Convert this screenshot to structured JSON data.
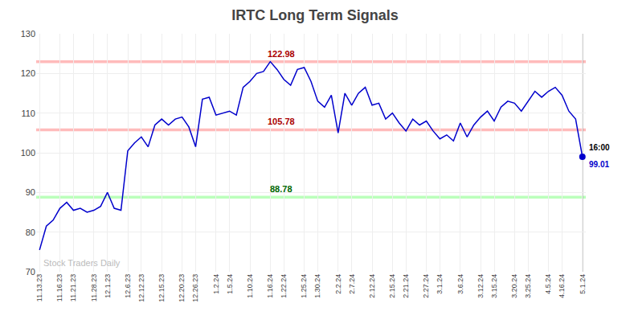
{
  "chart_data": {
    "type": "line",
    "title": "IRTC Long Term Signals",
    "categories": [
      "11.13.23",
      null,
      null,
      "11.16.23",
      null,
      "11.21.23",
      null,
      null,
      "11.28.23",
      null,
      "12.1.23",
      null,
      null,
      "12.6.23",
      null,
      "12.12.23",
      null,
      null,
      "12.15.23",
      null,
      null,
      "12.20.23",
      null,
      "12.26.23",
      null,
      null,
      "1.2.24",
      null,
      "1.5.24",
      null,
      null,
      "1.10.24",
      null,
      null,
      "1.16.24",
      null,
      "1.22.24",
      null,
      null,
      "1.25.24",
      null,
      "1.30.24",
      null,
      null,
      "2.2.24",
      null,
      "2.7.24",
      null,
      null,
      "2.12.24",
      null,
      null,
      "2.15.24",
      null,
      "2.21.24",
      null,
      null,
      "2.27.24",
      null,
      "3.1.24",
      null,
      null,
      "3.6.24",
      null,
      null,
      "3.12.24",
      null,
      "3.15.24",
      null,
      null,
      "3.20.24",
      null,
      "3.25.24",
      null,
      null,
      "4.5.24",
      null,
      "4.16.24",
      null,
      null,
      "5.1.24"
    ],
    "values": [
      75.5,
      81.5,
      83.0,
      86.0,
      87.5,
      85.5,
      86.0,
      85.0,
      85.5,
      86.5,
      90.0,
      86.0,
      85.5,
      100.5,
      102.5,
      104.0,
      101.5,
      107.0,
      108.5,
      107.0,
      108.5,
      109.0,
      106.5,
      101.5,
      113.5,
      114.0,
      109.5,
      110.0,
      110.5,
      109.5,
      116.5,
      118.0,
      120.0,
      120.5,
      122.98,
      121.0,
      118.5,
      117.0,
      121.0,
      121.5,
      118.0,
      113.0,
      111.5,
      114.5,
      105.0,
      115.0,
      112.0,
      115.0,
      116.5,
      112.0,
      112.5,
      108.5,
      110.0,
      107.5,
      105.5,
      108.5,
      107.0,
      108.0,
      105.5,
      103.5,
      104.5,
      103.0,
      107.5,
      104.0,
      107.0,
      109.0,
      110.5,
      108.0,
      111.5,
      113.0,
      112.5,
      110.5,
      113.0,
      115.5,
      114.0,
      115.5,
      116.5,
      114.5,
      110.5,
      108.5,
      99.01
    ],
    "color": "#0000cc",
    "ylim": [
      70,
      130
    ],
    "yticks": [
      70,
      80,
      90,
      100,
      110,
      120,
      130
    ],
    "grid": true,
    "hlines": [
      {
        "value": 122.98,
        "color": "#ffbbbb",
        "label": "122.98",
        "label_color": "#aa0000"
      },
      {
        "value": 105.78,
        "color": "#ffbbbb",
        "label": "105.78",
        "label_color": "#aa0000"
      },
      {
        "value": 88.78,
        "color": "#bbffbb",
        "label": "88.78",
        "label_color": "#006600"
      }
    ],
    "last_point": {
      "value": 99.01,
      "label": "99.01",
      "time_label": "16:00",
      "color": "#0000cc",
      "vline_color": "#888888"
    },
    "watermark": {
      "text": "Stock Traders Daily",
      "color": "#bbbbbb"
    }
  }
}
